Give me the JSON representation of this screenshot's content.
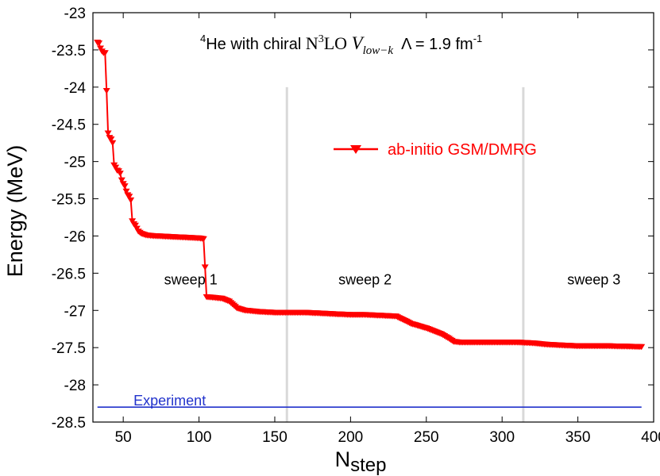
{
  "chart_data": {
    "type": "line",
    "title_parts": {
      "sup_mass": "4",
      "nucleus": "He with chiral ",
      "interaction": "N",
      "interaction_sup": "3",
      "interaction_tail": "LO ",
      "potential": "V",
      "potential_sub": "low−k",
      "cutoff": "Λ = 1.9 fm",
      "cutoff_sup": "-1"
    },
    "xlabel_main": "N",
    "xlabel_sub": "step",
    "ylabel": "Energy (MeV)",
    "xlim": [
      30,
      400
    ],
    "ylim": [
      -28.5,
      -23
    ],
    "x_ticks": [
      50,
      100,
      150,
      200,
      250,
      300,
      350,
      400
    ],
    "x_tick_labels": [
      "50",
      "100",
      "150",
      "200",
      "250",
      "300",
      "350",
      "400"
    ],
    "y_ticks": [
      -23,
      -23.5,
      -24,
      -24.5,
      -25,
      -25.5,
      -26,
      -26.5,
      -27,
      -27.5,
      -28,
      -28.5
    ],
    "y_tick_labels": [
      "-23",
      "-23.5",
      "-24",
      "-24.5",
      "-25",
      "-25.5",
      "-26",
      "-26.5",
      "-27",
      "-27.5",
      "-28",
      "-28.5"
    ],
    "sweep_boundaries": [
      158,
      314
    ],
    "sweep_labels": [
      {
        "text": "sweep 1",
        "x": 77,
        "y": -26.65
      },
      {
        "text": "sweep 2",
        "x": 192,
        "y": -26.65
      },
      {
        "text": "sweep 3",
        "x": 343,
        "y": -26.65
      }
    ],
    "series": [
      {
        "name": "ab-initio GSM/DMRG",
        "color": "#ff0000",
        "marker": "triangle-down",
        "profile": [
          [
            33,
            -23.4
          ],
          [
            34,
            -23.41
          ],
          [
            35,
            -23.48
          ],
          [
            36,
            -23.52
          ],
          [
            37,
            -23.54
          ],
          [
            38,
            -23.54
          ],
          [
            39,
            -24.05
          ],
          [
            40,
            -24.62
          ],
          [
            41,
            -24.68
          ],
          [
            42,
            -24.7
          ],
          [
            43,
            -24.75
          ],
          [
            44,
            -25.05
          ],
          [
            45,
            -25.08
          ],
          [
            46,
            -25.12
          ],
          [
            47,
            -25.13
          ],
          [
            48,
            -25.16
          ],
          [
            49,
            -25.25
          ],
          [
            50,
            -25.3
          ],
          [
            51,
            -25.33
          ],
          [
            52,
            -25.4
          ],
          [
            53,
            -25.45
          ],
          [
            54,
            -25.47
          ],
          [
            55,
            -25.52
          ],
          [
            56,
            -25.8
          ],
          [
            57,
            -25.84
          ],
          [
            58,
            -25.86
          ],
          [
            59,
            -25.9
          ],
          [
            60,
            -25.94
          ],
          [
            62,
            -25.97
          ],
          [
            65,
            -25.99
          ],
          [
            70,
            -26.0
          ],
          [
            80,
            -26.01
          ],
          [
            90,
            -26.02
          ],
          [
            100,
            -26.03
          ],
          [
            103,
            -26.04
          ],
          [
            104,
            -26.42
          ],
          [
            105,
            -26.82
          ],
          [
            110,
            -26.83
          ],
          [
            115,
            -26.84
          ],
          [
            120,
            -26.88
          ],
          [
            125,
            -26.97
          ],
          [
            130,
            -27.0
          ],
          [
            140,
            -27.02
          ],
          [
            150,
            -27.03
          ],
          [
            160,
            -27.03
          ],
          [
            170,
            -27.03
          ],
          [
            180,
            -27.04
          ],
          [
            190,
            -27.05
          ],
          [
            200,
            -27.06
          ],
          [
            210,
            -27.06
          ],
          [
            220,
            -27.07
          ],
          [
            230,
            -27.08
          ],
          [
            235,
            -27.13
          ],
          [
            240,
            -27.18
          ],
          [
            250,
            -27.24
          ],
          [
            260,
            -27.32
          ],
          [
            265,
            -27.38
          ],
          [
            268,
            -27.42
          ],
          [
            272,
            -27.43
          ],
          [
            290,
            -27.43
          ],
          [
            310,
            -27.43
          ],
          [
            320,
            -27.44
          ],
          [
            330,
            -27.46
          ],
          [
            340,
            -27.47
          ],
          [
            350,
            -27.48
          ],
          [
            370,
            -27.48
          ],
          [
            392,
            -27.49
          ]
        ]
      },
      {
        "name": "Experiment",
        "color": "#2233cc",
        "x": [
          33,
          392
        ],
        "values": [
          -28.3,
          -28.3
        ]
      }
    ],
    "legend": {
      "entries": [
        "ab-initio GSM/DMRG"
      ],
      "position": "upper-center-right"
    },
    "annotations": [
      {
        "text": "Experiment",
        "x": 50,
        "y": -28.2
      }
    ]
  }
}
